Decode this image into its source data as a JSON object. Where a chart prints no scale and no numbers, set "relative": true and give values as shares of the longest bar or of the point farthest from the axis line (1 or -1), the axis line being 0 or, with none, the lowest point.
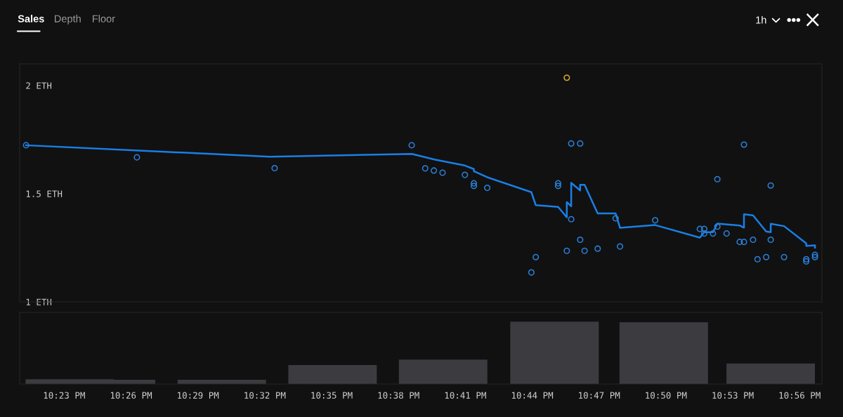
{
  "chart_data": [
    {
      "type": "scatter",
      "annotations": [
        "Sales",
        "Depth",
        "Floor",
        "1h"
      ],
      "xlim": [
        22.35,
        22.95
      ],
      "ylim": [
        1,
        2.1
      ],
      "yticks": [
        {
          "value": 1,
          "label": "1 ETH"
        },
        {
          "value": 1.5,
          "label": "1.5 ETH"
        },
        {
          "value": 2,
          "label": "2 ETH"
        }
      ],
      "tick_labels": "y",
      "series": [
        {
          "type": "line",
          "color": "#1a7fe6",
          "line_style": "solid",
          "marker": "none",
          "x": [
            22.3548,
            22.537,
            22.6433,
            22.6603,
            22.683,
            22.6897,
            22.6897,
            22.6997,
            22.7327,
            22.736,
            22.7527,
            22.7592,
            22.7592,
            22.7625,
            22.7625,
            22.7692,
            22.7692,
            22.7725,
            22.7823,
            22.7957,
            22.799,
            22.8253,
            22.8587,
            22.862,
            22.8685,
            22.8718,
            22.8885,
            22.8917,
            22.8917,
            22.8985,
            22.9083,
            22.9117,
            22.9117,
            22.9217,
            22.9383,
            22.9383,
            22.9448,
            22.9448
          ],
          "values": [
            1.724,
            1.671,
            1.684,
            1.658,
            1.63,
            1.614,
            1.604,
            1.576,
            1.507,
            1.447,
            1.439,
            1.391,
            1.461,
            1.442,
            1.55,
            1.515,
            1.541,
            1.541,
            1.409,
            1.409,
            1.342,
            1.355,
            1.297,
            1.322,
            1.322,
            1.362,
            1.353,
            1.343,
            1.405,
            1.4,
            1.325,
            1.322,
            1.361,
            1.35,
            1.27,
            1.259,
            1.261,
            1.251
          ]
        },
        {
          "type": "scatter",
          "marker": "circle",
          "x": [
            22.3548,
            22.4377,
            22.5407,
            22.6432,
            22.6533,
            22.6598,
            22.6663,
            22.683,
            22.6897,
            22.6897,
            22.6997,
            22.7327,
            22.736,
            22.7527,
            22.7527,
            22.7592,
            22.7592,
            22.7625,
            22.7625,
            22.7692,
            22.7692,
            22.7725,
            22.7823,
            22.7957,
            22.799,
            22.8253,
            22.8587,
            22.862,
            22.862,
            22.8685,
            22.8718,
            22.8718,
            22.8787,
            22.8885,
            22.8917,
            22.8917,
            22.8985,
            22.9018,
            22.9083,
            22.9117,
            22.9117,
            22.9217,
            22.9383,
            22.9383,
            22.9448,
            22.9448
          ],
          "values": [
            1.724,
            1.668,
            1.618,
            1.724,
            1.617,
            1.607,
            1.597,
            1.587,
            1.548,
            1.536,
            1.527,
            1.136,
            1.207,
            1.548,
            1.536,
            2.036,
            1.236,
            1.732,
            1.382,
            1.732,
            1.287,
            1.236,
            1.246,
            1.386,
            1.256,
            1.377,
            1.337,
            1.337,
            1.316,
            1.316,
            1.567,
            1.348,
            1.316,
            1.277,
            1.277,
            1.727,
            1.287,
            1.197,
            1.207,
            1.538,
            1.287,
            1.207,
            1.197,
            1.187,
            1.217,
            1.207
          ],
          "colors": [
            "#2a7fd8",
            "#2a7fd8",
            "#2a7fd8",
            "#2a7fd8",
            "#2a7fd8",
            "#2a7fd8",
            "#2a7fd8",
            "#2a7fd8",
            "#2a7fd8",
            "#2a7fd8",
            "#2a7fd8",
            "#2a7fd8",
            "#2a7fd8",
            "#2a7fd8",
            "#2a7fd8",
            "#d9a92a",
            "#2a7fd8",
            "#2a7fd8",
            "#2a7fd8",
            "#2a7fd8",
            "#2a7fd8",
            "#2a7fd8",
            "#2a7fd8",
            "#2a7fd8",
            "#2a7fd8",
            "#2a7fd8",
            "#2a7fd8",
            "#2a7fd8",
            "#2a7fd8",
            "#2a7fd8",
            "#2a7fd8",
            "#2a7fd8",
            "#2a7fd8",
            "#2a7fd8",
            "#2a7fd8",
            "#2a7fd8",
            "#2a7fd8",
            "#2a7fd8",
            "#2a7fd8",
            "#2a7fd8",
            "#2a7fd8",
            "#2a7fd8",
            "#2a7fd8",
            "#2a7fd8",
            "#2a7fd8",
            "#2a7fd8"
          ]
        }
      ]
    },
    {
      "type": "bar",
      "relative": true,
      "color": "#3c3c40",
      "tick_labels": "x",
      "xlim": [
        22.35,
        22.95
      ],
      "xticks": [
        {
          "value": 22.3833,
          "label": "10:23 PM"
        },
        {
          "value": 22.4333,
          "label": "10:26 PM"
        },
        {
          "value": 22.4833,
          "label": "10:29 PM"
        },
        {
          "value": 22.5333,
          "label": "10:32 PM"
        },
        {
          "value": 22.5833,
          "label": "10:35 PM"
        },
        {
          "value": 22.6333,
          "label": "10:38 PM"
        },
        {
          "value": 22.6833,
          "label": "10:41 PM"
        },
        {
          "value": 22.7333,
          "label": "10:44 PM"
        },
        {
          "value": 22.7833,
          "label": "10:47 PM"
        },
        {
          "value": 22.8333,
          "label": "10:50 PM"
        },
        {
          "value": 22.8833,
          "label": "10:53 PM"
        },
        {
          "value": 22.9333,
          "label": "10:56 PM"
        }
      ],
      "x": [
        22.3875,
        22.4183,
        22.5012,
        22.584,
        22.6667,
        22.75,
        22.8317,
        22.9117
      ],
      "values": [
        0.077,
        0.069,
        0.069,
        0.304,
        0.391,
        1,
        0.992,
        0.33
      ]
    }
  ]
}
